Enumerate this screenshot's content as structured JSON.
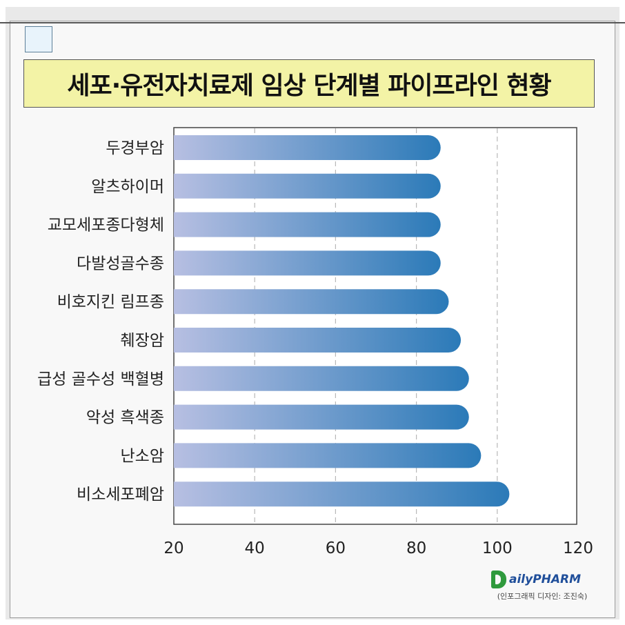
{
  "title": "세포·유전자치료제 임상 단계별 파이프라인 현황",
  "logo_text": "ailyPHARM",
  "credit": "(인포그래픽 디자인: 조진숙)",
  "colors": {
    "bar_start": "#b7bfe2",
    "bar_end": "#2b7ab8",
    "banner": "#f3f3a6",
    "logo_green": "#2f9a3d",
    "logo_blue": "#1f4e9a"
  },
  "chart_data": {
    "type": "bar",
    "orientation": "horizontal",
    "title": "세포·유전자치료제 임상 단계별 파이프라인 현황",
    "categories": [
      "두경부암",
      "알츠하이머",
      "교모세포종다형체",
      "다발성골수종",
      "비호지킨 림프종",
      "췌장암",
      "급성 골수성 백혈병",
      "악성 흑색종",
      "난소암",
      "비소세포폐암"
    ],
    "values": [
      86,
      86,
      86,
      86,
      88,
      91,
      93,
      93,
      96,
      103
    ],
    "xlim": [
      20,
      120
    ],
    "x_ticks": [
      "20",
      "40",
      "60",
      "80",
      "100",
      "120"
    ],
    "grid": "vertical dashed",
    "xlabel": "",
    "ylabel": ""
  }
}
